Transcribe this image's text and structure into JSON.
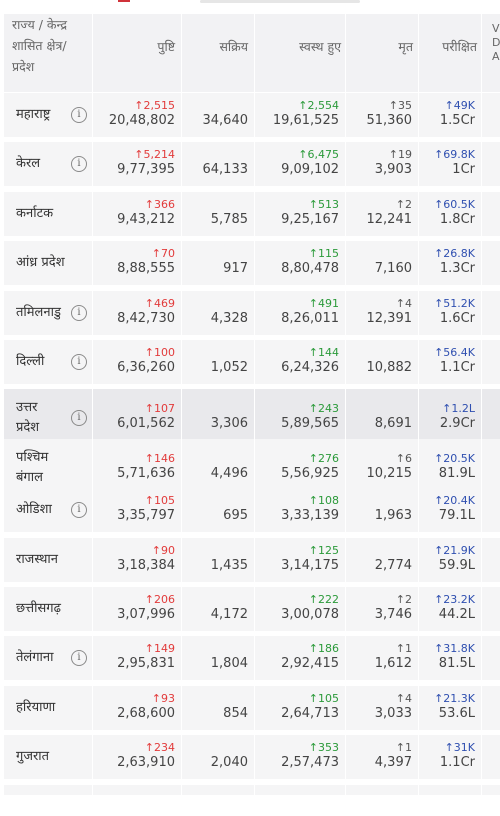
{
  "columns": {
    "state": "राज्य / केन्द्र शासित क्षेत्र/ प्रदेश",
    "state_lines": [
      "राज्य / केन्द्र",
      "शासित क्षेत्र/",
      "प्रदेश"
    ],
    "confirmed": "पुष्टि",
    "active": "सक्रिय",
    "recovered": "स्वस्थ हुए",
    "deceased": "मृत",
    "tested": "परीक्षित",
    "extra_partial": [
      "V",
      "D",
      "A"
    ]
  },
  "colors": {
    "confirmed_delta": "#e23b3b",
    "recovered_delta": "#2b9a3a",
    "tested_delta": "#2f4fb0",
    "cell_bg": "#f5f5f6"
  },
  "rows": [
    {
      "name_lines": [
        "महाराष्ट्र"
      ],
      "info": true,
      "confirmed_delta": "↑2,515",
      "confirmed": "20,48,802",
      "active": "34,640",
      "recovered_delta": "↑2,554",
      "recovered": "19,61,525",
      "deceased_delta": "↑35",
      "deceased": "51,360",
      "tested_delta": "↑49K",
      "tested": "1.5Cr"
    },
    {
      "name_lines": [
        "केरल"
      ],
      "info": true,
      "confirmed_delta": "↑5,214",
      "confirmed": "9,77,395",
      "active": "64,133",
      "recovered_delta": "↑6,475",
      "recovered": "9,09,102",
      "deceased_delta": "↑19",
      "deceased": "3,903",
      "tested_delta": "↑69.8K",
      "tested": "1Cr"
    },
    {
      "name_lines": [
        "कर्नाटक"
      ],
      "info": false,
      "confirmed_delta": "↑366",
      "confirmed": "9,43,212",
      "active": "5,785",
      "recovered_delta": "↑513",
      "recovered": "9,25,167",
      "deceased_delta": "↑2",
      "deceased": "12,241",
      "tested_delta": "↑60.5K",
      "tested": "1.8Cr"
    },
    {
      "name_lines": [
        "आंध्र प्रदेश"
      ],
      "info": false,
      "confirmed_delta": "↑70",
      "confirmed": "8,88,555",
      "active": "917",
      "recovered_delta": "↑115",
      "recovered": "8,80,478",
      "deceased_delta": "",
      "deceased": "7,160",
      "tested_delta": "↑26.8K",
      "tested": "1.3Cr"
    },
    {
      "name_lines": [
        "तमिलनाडु"
      ],
      "info": true,
      "confirmed_delta": "↑469",
      "confirmed": "8,42,730",
      "active": "4,328",
      "recovered_delta": "↑491",
      "recovered": "8,26,011",
      "deceased_delta": "↑4",
      "deceased": "12,391",
      "tested_delta": "↑51.2K",
      "tested": "1.6Cr"
    },
    {
      "name_lines": [
        "दिल्ली"
      ],
      "info": true,
      "confirmed_delta": "↑100",
      "confirmed": "6,36,260",
      "active": "1,052",
      "recovered_delta": "↑144",
      "recovered": "6,24,326",
      "deceased_delta": "",
      "deceased": "10,882",
      "tested_delta": "↑56.4K",
      "tested": "1.1Cr"
    },
    {
      "name_lines": [
        "उत्तर",
        "प्रदेश"
      ],
      "info": true,
      "highlight": true,
      "confirmed_delta": "↑107",
      "confirmed": "6,01,562",
      "active": "3,306",
      "recovered_delta": "↑243",
      "recovered": "5,89,565",
      "deceased_delta": "",
      "deceased": "8,691",
      "tested_delta": "↑1.2L",
      "tested": "2.9Cr"
    },
    {
      "name_lines": [
        "पश्चिम",
        "बंगाल"
      ],
      "info": false,
      "confirmed_delta": "↑146",
      "confirmed": "5,71,636",
      "active": "4,496",
      "recovered_delta": "↑276",
      "recovered": "5,56,925",
      "deceased_delta": "↑6",
      "deceased": "10,215",
      "tested_delta": "↑20.5K",
      "tested": "81.9L"
    },
    {
      "name_lines": [
        "ओडिशा"
      ],
      "info": true,
      "confirmed_delta": "↑105",
      "confirmed": "3,35,797",
      "active": "695",
      "recovered_delta": "↑108",
      "recovered": "3,33,139",
      "deceased_delta": "",
      "deceased": "1,963",
      "tested_delta": "↑20.4K",
      "tested": "79.1L"
    },
    {
      "name_lines": [
        "राजस्थान"
      ],
      "info": false,
      "confirmed_delta": "↑90",
      "confirmed": "3,18,384",
      "active": "1,435",
      "recovered_delta": "↑125",
      "recovered": "3,14,175",
      "deceased_delta": "",
      "deceased": "2,774",
      "tested_delta": "↑21.9K",
      "tested": "59.9L"
    },
    {
      "name_lines": [
        "छत्तीसगढ़"
      ],
      "info": false,
      "confirmed_delta": "↑206",
      "confirmed": "3,07,996",
      "active": "4,172",
      "recovered_delta": "↑222",
      "recovered": "3,00,078",
      "deceased_delta": "↑2",
      "deceased": "3,746",
      "tested_delta": "↑23.2K",
      "tested": "44.2L"
    },
    {
      "name_lines": [
        "तेलंगाना"
      ],
      "info": true,
      "confirmed_delta": "↑149",
      "confirmed": "2,95,831",
      "active": "1,804",
      "recovered_delta": "↑186",
      "recovered": "2,92,415",
      "deceased_delta": "↑1",
      "deceased": "1,612",
      "tested_delta": "↑31.8K",
      "tested": "81.5L"
    },
    {
      "name_lines": [
        "हरियाणा"
      ],
      "info": false,
      "confirmed_delta": "↑93",
      "confirmed": "2,68,600",
      "active": "854",
      "recovered_delta": "↑105",
      "recovered": "2,64,713",
      "deceased_delta": "↑4",
      "deceased": "3,033",
      "tested_delta": "↑21.3K",
      "tested": "53.6L"
    },
    {
      "name_lines": [
        "गुजरात"
      ],
      "info": false,
      "confirmed_delta": "↑234",
      "confirmed": "2,63,910",
      "active": "2,040",
      "recovered_delta": "↑353",
      "recovered": "2,57,473",
      "deceased_delta": "↑1",
      "deceased": "4,397",
      "tested_delta": "↑31K",
      "tested": "1.1Cr"
    }
  ]
}
